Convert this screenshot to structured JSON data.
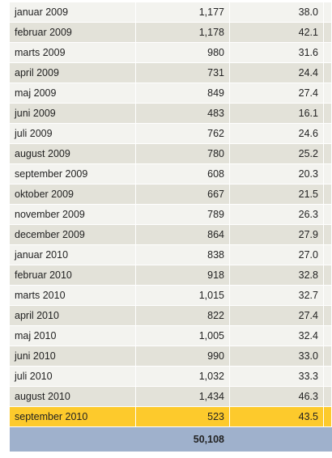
{
  "colors": {
    "row_odd": "#f3f3ef",
    "row_even": "#e3e2d9",
    "highlight": "#fdca2c",
    "total_bar": "#9fb1cc"
  },
  "table": {
    "rows": [
      {
        "month": "januar 2009",
        "count": "1,177",
        "rate": "38.0"
      },
      {
        "month": "februar 2009",
        "count": "1,178",
        "rate": "42.1"
      },
      {
        "month": "marts 2009",
        "count": "980",
        "rate": "31.6"
      },
      {
        "month": "april 2009",
        "count": "731",
        "rate": "24.4"
      },
      {
        "month": "maj 2009",
        "count": "849",
        "rate": "27.4"
      },
      {
        "month": "juni 2009",
        "count": "483",
        "rate": "16.1"
      },
      {
        "month": "juli 2009",
        "count": "762",
        "rate": "24.6"
      },
      {
        "month": "august 2009",
        "count": "780",
        "rate": "25.2"
      },
      {
        "month": "september 2009",
        "count": "608",
        "rate": "20.3"
      },
      {
        "month": "oktober 2009",
        "count": "667",
        "rate": "21.5"
      },
      {
        "month": "november 2009",
        "count": "789",
        "rate": "26.3"
      },
      {
        "month": "december 2009",
        "count": "864",
        "rate": "27.9"
      },
      {
        "month": "januar 2010",
        "count": "838",
        "rate": "27.0"
      },
      {
        "month": "februar 2010",
        "count": "918",
        "rate": "32.8"
      },
      {
        "month": "marts 2010",
        "count": "1,015",
        "rate": "32.7"
      },
      {
        "month": "april 2010",
        "count": "822",
        "rate": "27.4"
      },
      {
        "month": "maj 2010",
        "count": "1,005",
        "rate": "32.4"
      },
      {
        "month": "juni 2010",
        "count": "990",
        "rate": "33.0"
      },
      {
        "month": "juli 2010",
        "count": "1,032",
        "rate": "33.3"
      },
      {
        "month": "august 2010",
        "count": "1,434",
        "rate": "46.3"
      },
      {
        "month": "september 2010",
        "count": "523",
        "rate": "43.5",
        "highlighted": true
      }
    ],
    "total": {
      "month": "",
      "count": "50,108",
      "rate": ""
    }
  }
}
